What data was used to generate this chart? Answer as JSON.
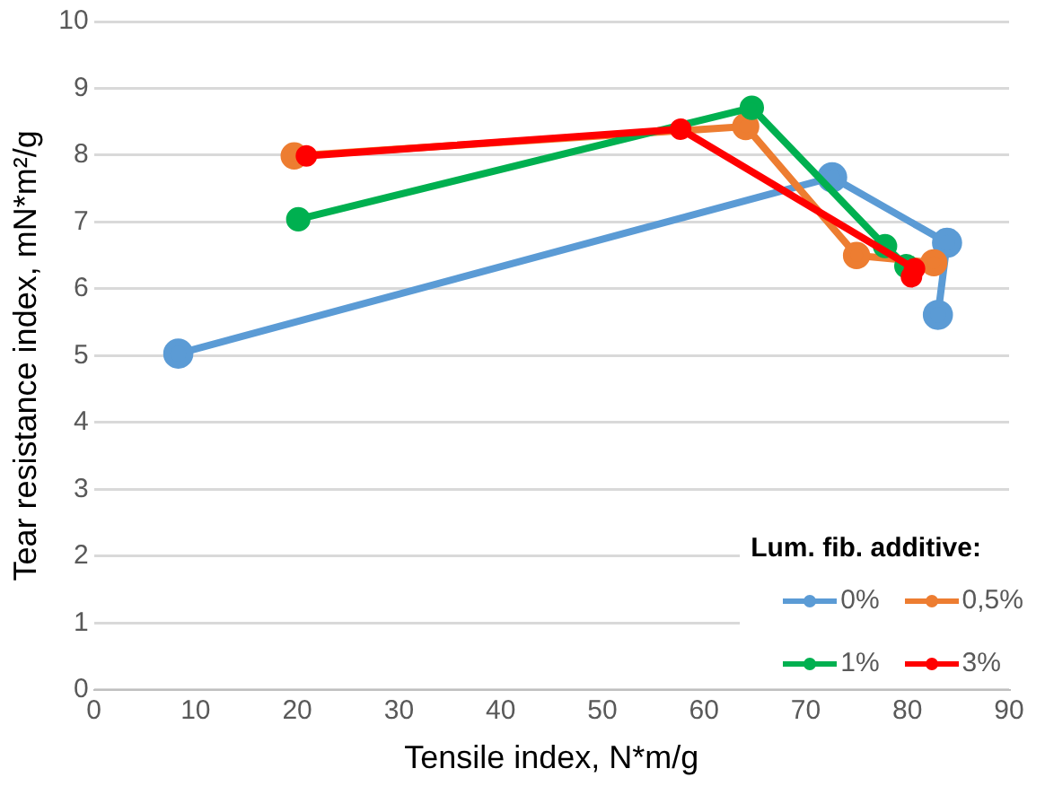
{
  "chart_data": {
    "type": "line",
    "xlabel": "Tensile index, N*m/g",
    "ylabel": "Tear resistance index, mN*m²/g",
    "legend_title": "Lum. fib. additive:",
    "legend": "bottom right",
    "grid": "y",
    "marker": "circle",
    "line_style": "solid",
    "xlim": [
      0,
      90
    ],
    "xticks": [
      0,
      10,
      20,
      30,
      40,
      50,
      60,
      70,
      80,
      90
    ],
    "ylim": [
      0,
      10
    ],
    "yticks": [
      0,
      1,
      2,
      3,
      4,
      5,
      6,
      7,
      8,
      9,
      10
    ],
    "series": [
      {
        "name": "0%",
        "color": "#5b9bd5",
        "x": [
          8.3,
          72.6,
          83.9,
          83.0
        ],
        "values": [
          5.03,
          7.67,
          6.69,
          5.61
        ]
      },
      {
        "name": "0,5%",
        "color": "#ed7d31",
        "x": [
          19.7,
          64.1,
          75.0,
          82.6
        ],
        "values": [
          7.99,
          8.43,
          6.5,
          6.39
        ]
      },
      {
        "name": "1%",
        "color": "#00b050",
        "x": [
          20.1,
          64.7,
          77.8,
          79.9
        ],
        "values": [
          7.04,
          8.71,
          6.64,
          6.34
        ]
      },
      {
        "name": "3%",
        "color": "#ff0000",
        "x": [
          20.9,
          57.7,
          80.7,
          80.4
        ],
        "values": [
          7.99,
          8.39,
          6.3,
          6.18
        ]
      }
    ]
  }
}
